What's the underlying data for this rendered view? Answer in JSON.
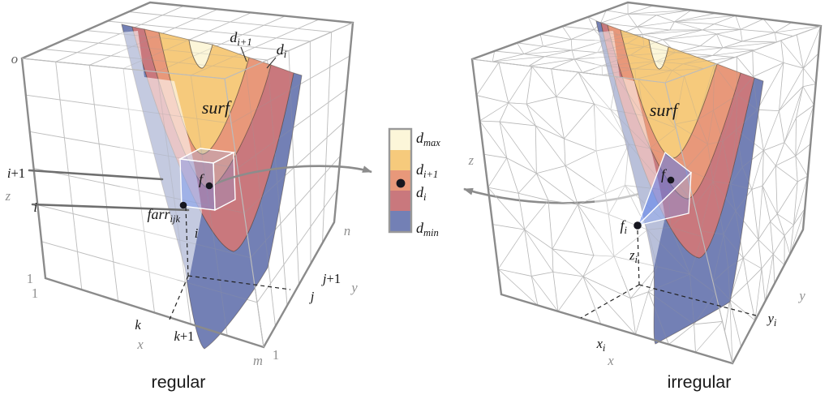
{
  "figure": {
    "left": {
      "caption": "regular",
      "surface_label": "surf",
      "z_ticks": {
        "top": "o",
        "i1": {
          "it": "i",
          "rm": "+1"
        },
        "i": "i",
        "bottom": "1"
      },
      "x_ticks": {
        "start": "1",
        "k": "k",
        "k1": {
          "it": "k",
          "rm": "+1"
        },
        "end": "m",
        "letter": "x"
      },
      "y_ticks": {
        "start": "1",
        "j": "j",
        "j1": {
          "it": "j",
          "rm": "+1"
        },
        "end": "n",
        "letter": "y"
      },
      "z_letter": "z",
      "band_label_di1": {
        "base": "d",
        "sub": "i+1"
      },
      "band_label_di": {
        "base": "d",
        "sub": "i"
      },
      "point_f": "f",
      "point_farr": {
        "base": "farr",
        "sub": "ijk"
      },
      "cell_index": "i"
    },
    "legend": {
      "swatches": [
        "#fcf6d9",
        "#f6ca7c",
        "#e8987a",
        "#c9787d",
        "#7380b5"
      ],
      "labels": [
        {
          "base": "d",
          "sub": "max"
        },
        {
          "base": "d",
          "sub": "i+1"
        },
        {
          "base": "d",
          "sub": "i"
        },
        {
          "base": "d",
          "sub": "min"
        }
      ]
    },
    "right": {
      "caption": "irregular",
      "surface_label": "surf",
      "z_letter": "z",
      "x_letter": "x",
      "y_letter": "y",
      "point_f": "f",
      "point_fi": {
        "base": "f",
        "sub": "i"
      },
      "coord_zi": {
        "base": "z",
        "sub": "i"
      },
      "coord_xi": {
        "base": "x",
        "sub": "i"
      },
      "coord_yi": {
        "base": "y",
        "sub": "i"
      }
    }
  },
  "colors": {
    "band_cream": "#fcf6d9",
    "band_gold": "#f6ca7c",
    "band_salmon": "#e8987a",
    "band_rose": "#c9787d",
    "band_blue": "#7380b5",
    "band_outline": "#55493d",
    "wire_regular": "#cccccc",
    "wire_mesh": "#c6c6c6",
    "cube_edge": "#8b8b8b",
    "cube_edge_light": "#bcbcbc",
    "slab_line": "#6f6f6f",
    "arrow": "#8c8c8c",
    "dot": "#16161f",
    "dash": "#222222",
    "legend_border": "#999999",
    "cell_edge": "#ffffff"
  }
}
